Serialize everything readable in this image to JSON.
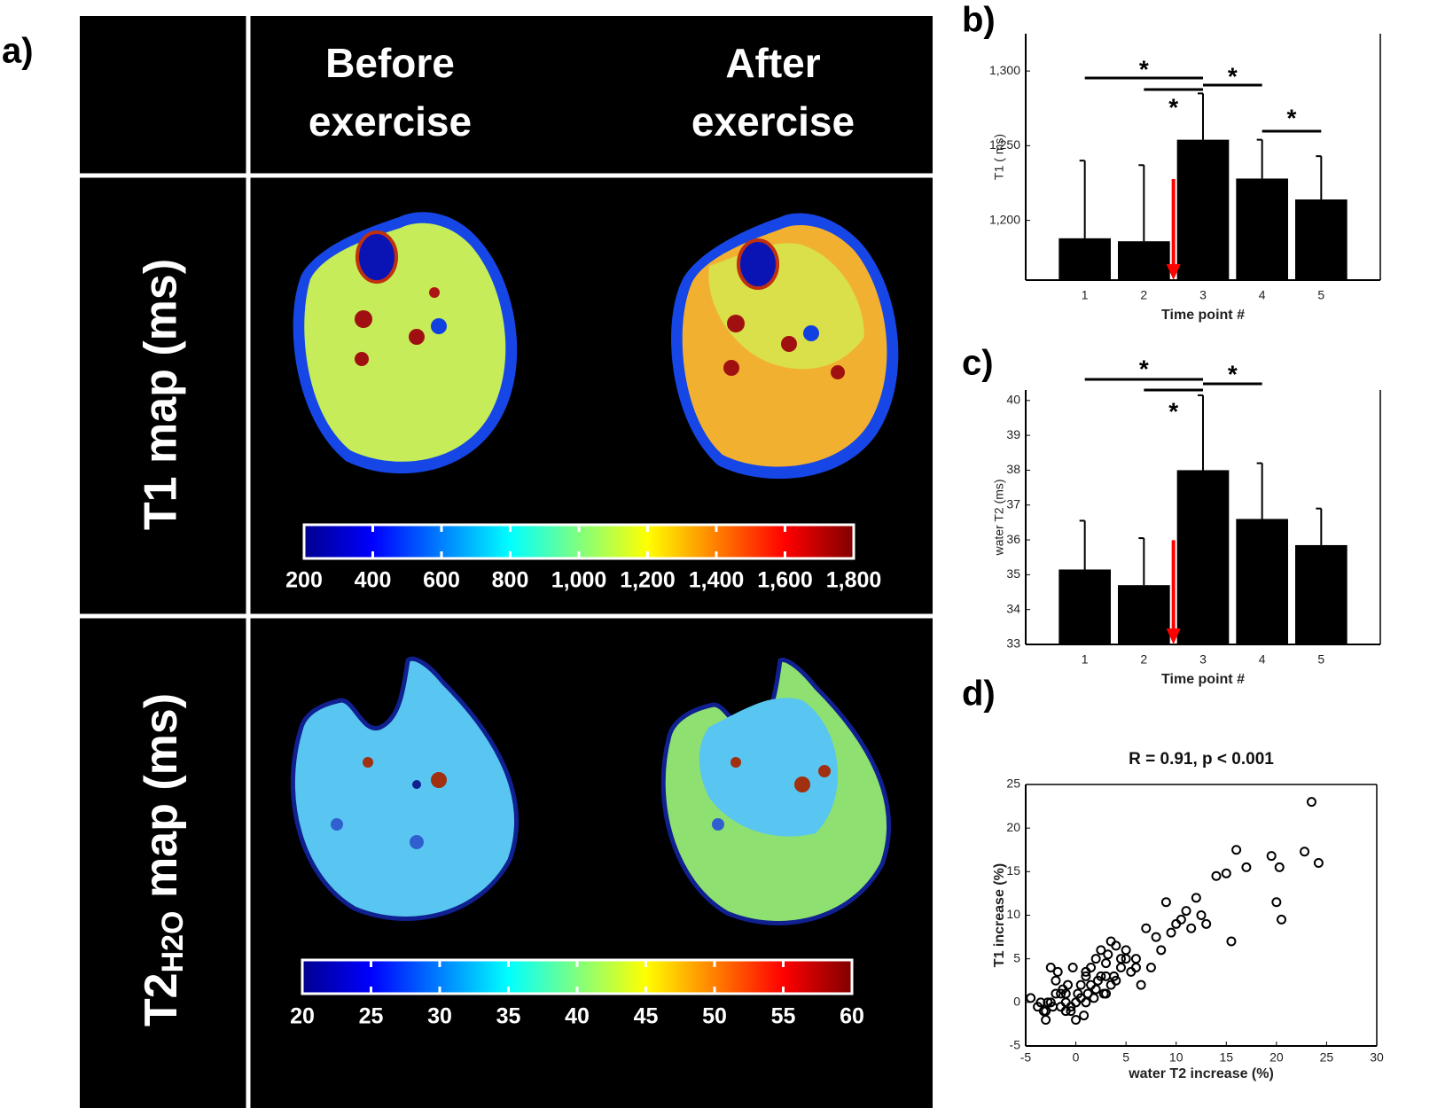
{
  "panel_a": {
    "label": "a)",
    "headers": [
      [
        "Before",
        "exercise"
      ],
      [
        "After",
        "exercise"
      ]
    ],
    "row_labels": [
      {
        "text": "T1 map (ms)"
      },
      {
        "main": "T2",
        "sub": "H2O",
        "rest": " map (ms)"
      }
    ],
    "colorbars": [
      {
        "lim": [
          200,
          1800
        ],
        "ticks": [
          200,
          400,
          600,
          800,
          {
            "value": 1000,
            "label": "1,000"
          },
          {
            "value": 1200,
            "label": "1,200"
          },
          {
            "value": 1400,
            "label": "1,400"
          },
          {
            "value": 1600,
            "label": "1,600"
          },
          {
            "value": 1800,
            "label": "1,800"
          }
        ]
      },
      {
        "lim": [
          20,
          60
        ],
        "ticks": [
          20,
          25,
          30,
          35,
          40,
          45,
          50,
          55,
          60
        ]
      }
    ]
  },
  "chart_data": [
    {
      "type": "bar",
      "label": "b)",
      "x_label": "Time point #",
      "y_label": "T1 ( ms)",
      "categories": [
        "1",
        "2",
        "3",
        "4",
        "5"
      ],
      "values": [
        1188,
        1186,
        1254,
        1228,
        1214
      ],
      "errors": [
        52,
        51,
        31,
        26,
        29
      ],
      "color": "#000000",
      "ylim": [
        1160,
        1325
      ],
      "yticks": [
        {
          "value": 1200,
          "label": "1,200"
        },
        {
          "value": 1250,
          "label": "1,250"
        },
        {
          "value": 1300,
          "label": "1,300"
        }
      ],
      "significance": [
        {
          "from": "1",
          "to": "3",
          "label": "*"
        },
        {
          "from": "2",
          "to": "3",
          "label": "*"
        },
        {
          "from": "3",
          "to": "4",
          "label": "*"
        },
        {
          "from": "4",
          "to": "5",
          "label": "*"
        }
      ]
    },
    {
      "type": "bar",
      "label": "c)",
      "x_label": "Time point #",
      "y_label": "water T2 (ms)",
      "categories": [
        "1",
        "2",
        "3",
        "4",
        "5"
      ],
      "values": [
        35.15,
        34.7,
        38.0,
        36.6,
        35.85
      ],
      "errors": [
        1.4,
        1.35,
        2.15,
        1.6,
        1.05
      ],
      "color": "#000000",
      "ylim": [
        33,
        40.3
      ],
      "yticks": [
        33,
        34,
        35,
        36,
        37,
        38,
        39,
        40
      ],
      "significance": [
        {
          "from": "1",
          "to": "3",
          "label": "*"
        },
        {
          "from": "2",
          "to": "3",
          "label": "*"
        },
        {
          "from": "3",
          "to": "4",
          "label": "*"
        }
      ]
    },
    {
      "type": "scatter",
      "label": "d)",
      "title": "R = 0.91, p < 0.001",
      "x_label": "water T2 increase (%)",
      "y_label": "T1 increase (%)",
      "color": "#000000",
      "x": [
        -4.5,
        -3.8,
        -3.5,
        -3.2,
        -3,
        -2.8,
        -2.5,
        -2.3,
        -2,
        -1.8,
        -1.5,
        -1.3,
        -1,
        -0.8,
        -0.5,
        -0.3,
        0,
        0.2,
        0.5,
        0.8,
        1,
        1.2,
        1.5,
        1.8,
        2,
        2.2,
        2.5,
        2.8,
        3,
        3.2,
        3.5,
        3.8,
        4,
        4.5,
        5,
        5.5,
        6,
        6.5,
        7,
        7.5,
        8,
        8.5,
        9,
        9.5,
        10,
        10.5,
        11,
        11.5,
        12,
        12.5,
        13,
        14,
        15,
        15.5,
        16,
        17,
        19.5,
        20,
        20.3,
        20.5,
        22.8,
        23.5,
        24.2,
        -2.5,
        -1.5,
        -0.5,
        0.5,
        1.5,
        2.5,
        3.5,
        4.5,
        -3,
        -1,
        1,
        3,
        5,
        0,
        2,
        -2,
        4,
        6,
        1,
        3,
        -1
      ],
      "values": [
        0.5,
        -0.5,
        0,
        -1,
        -2,
        0,
        4,
        -0.5,
        1,
        3.5,
        -0.5,
        1.5,
        0,
        2,
        -1,
        4,
        0,
        1,
        2,
        -1.5,
        3,
        1,
        4,
        0.5,
        5,
        2.5,
        6,
        1,
        3,
        5.5,
        7,
        3,
        2.5,
        4,
        6,
        3.5,
        5,
        2,
        8.5,
        4,
        7.5,
        6,
        11.5,
        8,
        9,
        9.5,
        10.5,
        8.5,
        12,
        10,
        9,
        14.5,
        14.8,
        7,
        17.5,
        15.5,
        16.8,
        11.5,
        15.5,
        9.5,
        17.3,
        23,
        16,
        0,
        1,
        -0.5,
        0.5,
        2,
        3,
        2,
        5,
        -1,
        1,
        3.5,
        4.5,
        5,
        -2,
        1.5,
        2.5,
        6.5,
        4,
        0,
        1,
        -1
      ],
      "xlim": [
        -5,
        30
      ],
      "xticks": [
        -5,
        0,
        5,
        10,
        15,
        20,
        25,
        30
      ],
      "ylim": [
        -5,
        25
      ],
      "yticks": [
        -5,
        0,
        5,
        10,
        15,
        20,
        25
      ]
    }
  ]
}
